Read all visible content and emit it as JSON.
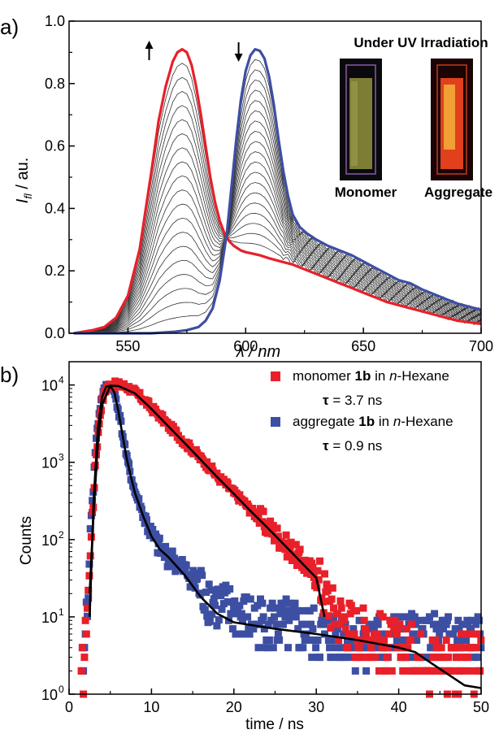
{
  "chart_data": [
    {
      "panel_label": "a)",
      "type": "line",
      "xlabel": "λ / nm",
      "ylabel_main": "I",
      "ylabel_sub": "fl",
      "ylabel_rest": " / au.",
      "xlim": [
        525,
        700
      ],
      "ylim": [
        0.0,
        1.0
      ],
      "xticks": [
        550,
        600,
        650,
        700
      ],
      "yticks": [
        "0.0",
        "0.2",
        "0.4",
        "0.6",
        "0.8",
        "1.0"
      ],
      "grid": false,
      "arrows": [
        {
          "x": 559,
          "direction": "up"
        },
        {
          "x": 597,
          "direction": "down"
        }
      ],
      "inset": {
        "title": "Under UV Irradiation",
        "labels": [
          "Monomer",
          "Aggregate"
        ]
      },
      "series": [
        {
          "color": "#e8202a",
          "x": [
            527,
            535,
            540,
            545,
            550,
            555,
            560,
            563,
            566,
            569,
            571,
            573,
            575,
            577,
            579,
            581,
            583,
            585,
            587,
            589,
            591,
            593,
            595,
            598,
            600,
            603,
            606,
            610,
            615,
            620,
            625,
            630,
            635,
            640,
            645,
            650,
            655,
            660,
            665,
            670,
            675,
            680,
            685,
            690,
            695,
            700
          ],
          "y": [
            0.0,
            0.01,
            0.02,
            0.05,
            0.12,
            0.27,
            0.52,
            0.68,
            0.79,
            0.87,
            0.9,
            0.91,
            0.9,
            0.86,
            0.79,
            0.7,
            0.6,
            0.5,
            0.42,
            0.36,
            0.32,
            0.295,
            0.28,
            0.265,
            0.26,
            0.255,
            0.25,
            0.24,
            0.23,
            0.22,
            0.205,
            0.19,
            0.175,
            0.16,
            0.145,
            0.13,
            0.115,
            0.1,
            0.09,
            0.08,
            0.07,
            0.06,
            0.05,
            0.04,
            0.035,
            0.03
          ]
        },
        {
          "color": "#3d4fa3",
          "x": [
            527,
            560,
            570,
            575,
            580,
            583,
            586,
            589,
            592,
            594,
            596,
            598,
            600,
            602,
            604,
            606,
            608,
            610,
            612,
            614,
            616,
            618,
            620,
            623,
            626,
            630,
            635,
            640,
            645,
            650,
            655,
            660,
            665,
            670,
            675,
            680,
            685,
            690,
            695,
            700
          ],
          "y": [
            0.0,
            0.0,
            0.005,
            0.01,
            0.02,
            0.04,
            0.08,
            0.17,
            0.32,
            0.47,
            0.62,
            0.75,
            0.84,
            0.89,
            0.91,
            0.905,
            0.88,
            0.82,
            0.73,
            0.62,
            0.52,
            0.44,
            0.38,
            0.34,
            0.32,
            0.3,
            0.28,
            0.265,
            0.25,
            0.23,
            0.21,
            0.19,
            0.17,
            0.16,
            0.14,
            0.125,
            0.11,
            0.095,
            0.085,
            0.075
          ]
        }
      ]
    },
    {
      "panel_label": "b)",
      "type": "scatter",
      "scale_y": "log",
      "xlabel": "time / ns",
      "ylabel": "Counts",
      "xlim": [
        0,
        50
      ],
      "ylim": [
        1,
        20000
      ],
      "xticks": [
        0,
        10,
        20,
        30,
        40,
        50
      ],
      "yticks": [
        {
          "value": 1,
          "base": "10",
          "exp": "0"
        },
        {
          "value": 10,
          "base": "10",
          "exp": "1"
        },
        {
          "value": 100,
          "base": "10",
          "exp": "2"
        },
        {
          "value": 1000,
          "base": "10",
          "exp": "3"
        },
        {
          "value": 10000,
          "base": "10",
          "exp": "4"
        }
      ],
      "grid": false,
      "legend_position": "top-right",
      "legend": [
        {
          "color": "#e8202a",
          "pre": "monomer ",
          "bold": "1b",
          "mid": " in ",
          "ital": "n",
          "post": "-Hexane",
          "tau_sym": "τ",
          "tau_val": " = 3.7 ns"
        },
        {
          "color": "#3d4fa3",
          "pre": "aggregate ",
          "bold": "1b",
          "mid": " in ",
          "ital": "n",
          "post": "-Hexane",
          "tau_sym": "τ",
          "tau_val": " = 0.9 ns"
        }
      ],
      "series": [
        {
          "color": "#e8202a",
          "marker": "square",
          "x": [
            1.5,
            2,
            2.5,
            3,
            3.5,
            4,
            4.5,
            5,
            5.5,
            6,
            7,
            8,
            9,
            10,
            12,
            14,
            16,
            18,
            20,
            22,
            24,
            26,
            28,
            30,
            31,
            32,
            34,
            36,
            38,
            40,
            42,
            44,
            46,
            48,
            50
          ],
          "y": [
            1,
            5,
            30,
            300,
            2000,
            6000,
            9000,
            10000,
            10000,
            10000,
            9500,
            8000,
            6500,
            5000,
            3000,
            1800,
            1100,
            650,
            400,
            240,
            150,
            90,
            55,
            32,
            20,
            12,
            8,
            6,
            5,
            4,
            3.5,
            3,
            3,
            3,
            3
          ]
        },
        {
          "color": "#3d4fa3",
          "marker": "square",
          "x": [
            1.5,
            2,
            2.5,
            3,
            3.5,
            4,
            4.5,
            5,
            5.5,
            6,
            6.5,
            7,
            7.5,
            8,
            9,
            10,
            11,
            12,
            14,
            16,
            18,
            20,
            22,
            25,
            28,
            30,
            35,
            40,
            45,
            50
          ],
          "y": [
            1,
            5,
            40,
            500,
            3000,
            7000,
            9500,
            10000,
            8000,
            4500,
            2200,
            1100,
            650,
            400,
            200,
            110,
            75,
            60,
            40,
            22,
            14,
            11,
            9,
            8,
            7,
            6,
            5,
            5,
            5,
            5
          ]
        }
      ],
      "fits": [
        {
          "color": "#000000",
          "x": [
            2.5,
            3,
            3.5,
            4,
            5,
            6,
            8,
            10,
            12,
            14,
            16,
            18,
            20,
            22,
            24,
            26,
            28,
            30,
            31
          ],
          "y": [
            20,
            250,
            1800,
            5500,
            9800,
            9700,
            7800,
            4900,
            2950,
            1780,
            1070,
            640,
            390,
            235,
            145,
            88,
            53,
            32,
            10
          ]
        },
        {
          "color": "#000000",
          "x": [
            2.5,
            3,
            3.5,
            4,
            4.5,
            5,
            5.5,
            6,
            6.5,
            7,
            7.5,
            8,
            9,
            10,
            11,
            12,
            14,
            16,
            18,
            20,
            25,
            30,
            35,
            40,
            42,
            44,
            46,
            48,
            50
          ],
          "y": [
            10,
            350,
            2800,
            7000,
            9500,
            9800,
            8000,
            4500,
            2200,
            1100,
            650,
            400,
            200,
            110,
            75,
            60,
            35,
            18,
            11,
            8.5,
            7,
            6,
            5,
            4,
            3.5,
            2.5,
            1.8,
            1.3,
            1.2
          ]
        }
      ]
    }
  ]
}
